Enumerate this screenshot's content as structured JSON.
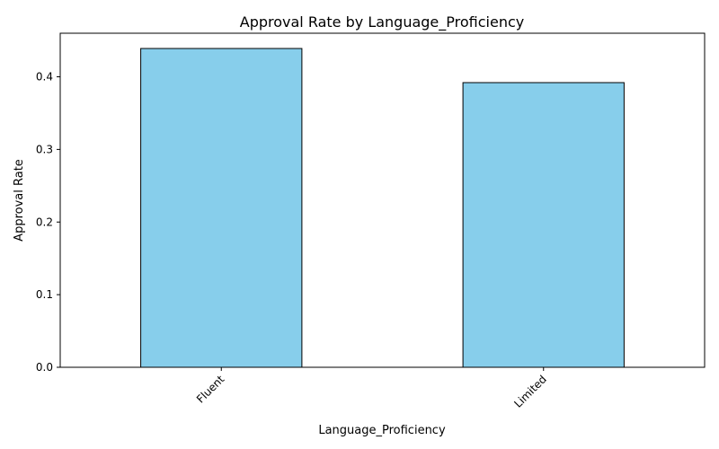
{
  "chart_data": {
    "type": "bar",
    "title": "Approval Rate by Language_Proficiency",
    "xlabel": "Language_Proficiency",
    "ylabel": "Approval Rate",
    "categories": [
      "Fluent",
      "Limited"
    ],
    "values": [
      0.439,
      0.392
    ],
    "ylim": [
      0,
      0.46
    ],
    "yticks": [
      0.0,
      0.1,
      0.2,
      0.3,
      0.4
    ],
    "ytick_labels": [
      "0.0",
      "0.1",
      "0.2",
      "0.3",
      "0.4"
    ],
    "bar_color": "#87ceeb",
    "bar_edge_color": "#000000",
    "grid": false,
    "legend": "none"
  }
}
